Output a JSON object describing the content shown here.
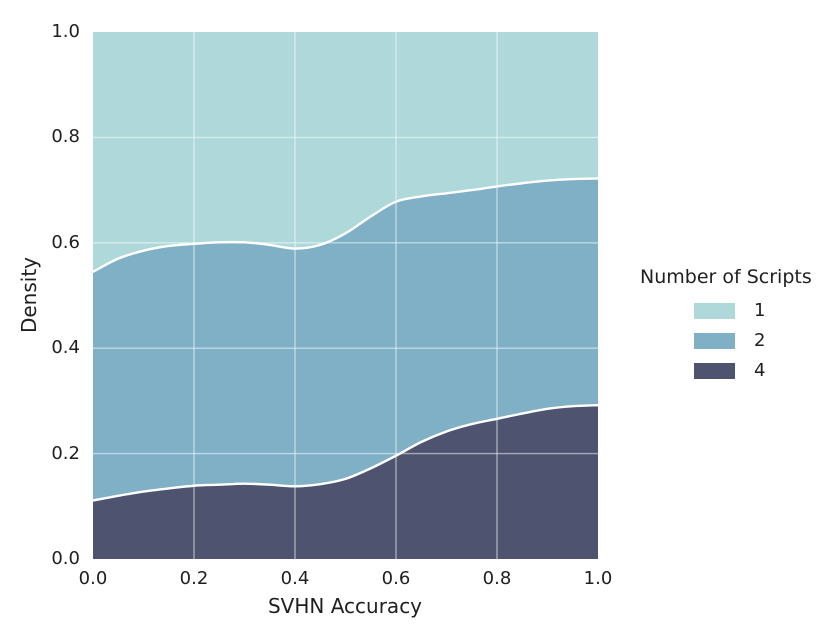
{
  "chart_data": {
    "type": "area",
    "stacked": true,
    "normalized": true,
    "title": "",
    "xlabel": "SVHN Accuracy",
    "ylabel": "Density",
    "xlim": [
      0.0,
      1.0
    ],
    "ylim": [
      0.0,
      1.0
    ],
    "grid": true,
    "x_ticks": [
      "0.0",
      "0.2",
      "0.4",
      "0.6",
      "0.8",
      "1.0"
    ],
    "y_ticks": [
      "0.0",
      "0.2",
      "0.4",
      "0.6",
      "0.8",
      "1.0"
    ],
    "x": [
      0.0,
      0.05,
      0.1,
      0.15,
      0.2,
      0.25,
      0.3,
      0.35,
      0.4,
      0.45,
      0.5,
      0.55,
      0.6,
      0.65,
      0.7,
      0.75,
      0.8,
      0.85,
      0.9,
      0.95,
      1.0
    ],
    "series": [
      {
        "name": "4",
        "color": "#4e5370",
        "values": [
          0.111,
          0.12,
          0.128,
          0.134,
          0.139,
          0.141,
          0.143,
          0.141,
          0.138,
          0.142,
          0.152,
          0.172,
          0.196,
          0.222,
          0.242,
          0.256,
          0.266,
          0.276,
          0.285,
          0.29,
          0.292
        ]
      },
      {
        "name": "2",
        "color": "#7fb0c6",
        "values": [
          0.434,
          0.45,
          0.457,
          0.46,
          0.459,
          0.46,
          0.458,
          0.455,
          0.451,
          0.454,
          0.466,
          0.478,
          0.482,
          0.466,
          0.452,
          0.444,
          0.441,
          0.437,
          0.433,
          0.431,
          0.43
        ]
      },
      {
        "name": "1",
        "color": "#aed8da",
        "values": [
          0.455,
          0.43,
          0.415,
          0.406,
          0.402,
          0.399,
          0.399,
          0.404,
          0.411,
          0.404,
          0.382,
          0.35,
          0.322,
          0.312,
          0.306,
          0.3,
          0.293,
          0.287,
          0.282,
          0.279,
          0.278
        ]
      }
    ],
    "style": {
      "boundary_stroke": "#ffffff",
      "boundary_stroke_width": 2.4,
      "gridline_color": "rgba(255,255,255,0.5)",
      "grid_values": [
        0.2,
        0.4,
        0.6,
        0.8
      ]
    },
    "legend": {
      "position": "right",
      "title": "Number of Scripts",
      "entries": [
        {
          "label": "1",
          "color": "#aed8da"
        },
        {
          "label": "2",
          "color": "#7fb0c6"
        },
        {
          "label": "4",
          "color": "#4e5370"
        }
      ]
    }
  }
}
